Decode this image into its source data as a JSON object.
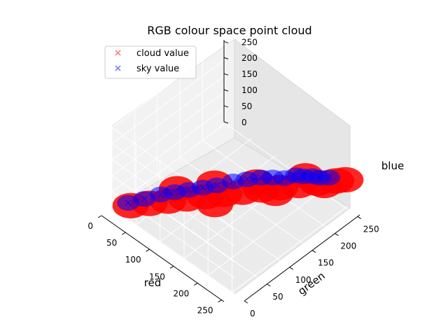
{
  "chart_data": {
    "type": "scatter",
    "projection": "3d",
    "title": "RGB colour space point cloud",
    "xlabel": "red",
    "ylabel": "green",
    "zlabel": "blue",
    "xlim": [
      0,
      255
    ],
    "ylim": [
      0,
      255
    ],
    "zlim": [
      0,
      255
    ],
    "xticks": [
      "0",
      "50",
      "100",
      "150",
      "200",
      "250"
    ],
    "yticks": [
      "0",
      "50",
      "100",
      "150",
      "200",
      "250"
    ],
    "zticks": [
      "0",
      "50",
      "100",
      "150",
      "200",
      "250"
    ],
    "grid": true,
    "legend": "upper left",
    "series": [
      {
        "name": "sky value",
        "color": "#0000ff",
        "marker": "x",
        "points": [
          [
            15,
            20,
            30
          ],
          [
            30,
            40,
            50
          ],
          [
            45,
            60,
            75
          ],
          [
            60,
            75,
            95
          ],
          [
            75,
            90,
            115
          ],
          [
            90,
            105,
            135
          ],
          [
            105,
            120,
            155
          ],
          [
            120,
            140,
            175
          ],
          [
            135,
            155,
            195
          ],
          [
            150,
            170,
            210
          ],
          [
            165,
            180,
            225
          ],
          [
            180,
            190,
            235
          ],
          [
            190,
            205,
            245
          ],
          [
            200,
            210,
            250
          ],
          [
            210,
            220,
            252
          ],
          [
            220,
            225,
            254
          ],
          [
            230,
            235,
            255
          ]
        ]
      },
      {
        "name": "cloud value",
        "color": "#ff0000",
        "marker": "x",
        "points": [
          [
            20,
            20,
            20
          ],
          [
            40,
            40,
            40
          ],
          [
            60,
            60,
            60
          ],
          [
            80,
            80,
            80
          ],
          [
            100,
            100,
            100
          ],
          [
            120,
            120,
            120
          ],
          [
            140,
            140,
            140
          ],
          [
            160,
            160,
            160
          ],
          [
            180,
            180,
            180
          ],
          [
            200,
            200,
            200
          ],
          [
            220,
            220,
            220
          ],
          [
            240,
            240,
            240
          ],
          [
            250,
            250,
            250
          ],
          [
            100,
            120,
            160
          ],
          [
            150,
            160,
            200
          ],
          [
            200,
            215,
            240
          ],
          [
            60,
            80,
            110
          ],
          [
            120,
            100,
            90
          ],
          [
            180,
            170,
            160
          ],
          [
            230,
            225,
            215
          ]
        ]
      }
    ]
  }
}
